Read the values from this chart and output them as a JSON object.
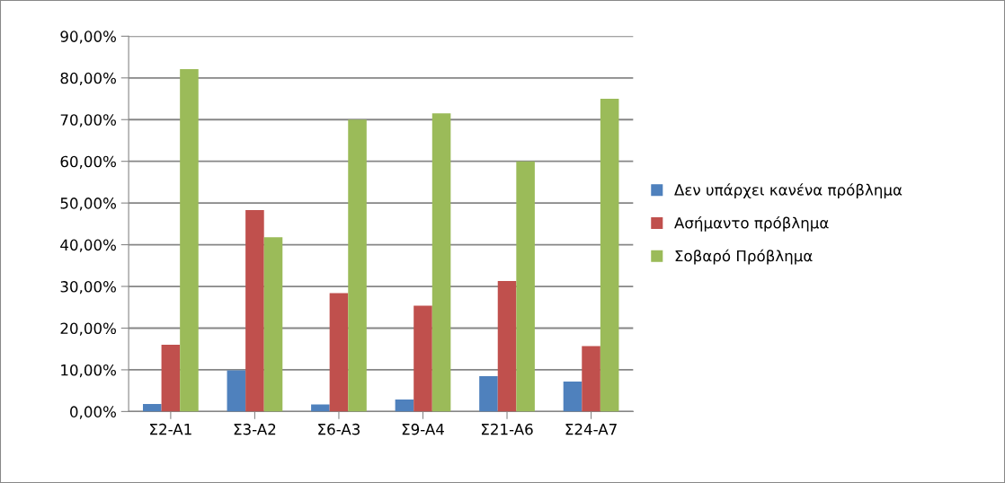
{
  "chart_data": {
    "type": "bar",
    "categories": [
      "Σ2-A1",
      "Σ3-A2",
      "Σ6-A3",
      "Σ9-A4",
      "Σ21-A6",
      "Σ24-A7"
    ],
    "series": [
      {
        "name": "Δεν υπάρχει κανένα πρόβλημα",
        "color": "#4f81bd",
        "values": [
          1.8,
          9.9,
          1.7,
          2.9,
          8.5,
          7.2
        ]
      },
      {
        "name": "Ασήμαντο πρόβλημα",
        "color": "#c0504d",
        "values": [
          16.0,
          48.3,
          28.4,
          25.4,
          31.3,
          15.7
        ]
      },
      {
        "name": "Σοβαρό Πρόβλημα",
        "color": "#9bbb59",
        "values": [
          82.1,
          41.8,
          70.0,
          71.5,
          60.0,
          75.0
        ]
      }
    ],
    "ylim": [
      0,
      90
    ],
    "yticks": [
      {
        "value": 0,
        "label": "0,00%"
      },
      {
        "value": 10,
        "label": "10,00%"
      },
      {
        "value": 20,
        "label": "20,00%"
      },
      {
        "value": 30,
        "label": "30,00%"
      },
      {
        "value": 40,
        "label": "40,00%"
      },
      {
        "value": 50,
        "label": "50,00%"
      },
      {
        "value": 60,
        "label": "60,00%"
      },
      {
        "value": 70,
        "label": "70,00%"
      },
      {
        "value": 80,
        "label": "80,00%"
      },
      {
        "value": 90,
        "label": "90,00%"
      }
    ],
    "grid": "y",
    "legend": "right"
  }
}
